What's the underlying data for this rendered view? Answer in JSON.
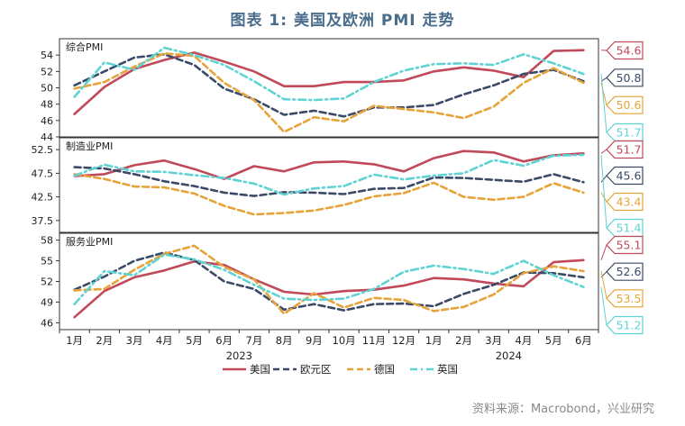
{
  "figure_title": "图表 1:    美国及欧洲 PMI 走势",
  "source_note": "资料来源：Macrobond，兴业研究",
  "colors": {
    "us": "#c0495a",
    "eurozone": "#3b4a66",
    "germany": "#e6a33a",
    "uk": "#5fd3d3"
  },
  "x_labels": [
    "1月",
    "2月",
    "3月",
    "4月",
    "5月",
    "6月",
    "7月",
    "8月",
    "9月",
    "10月",
    "11月",
    "12月",
    "1月",
    "2月",
    "3月",
    "4月",
    "5月",
    "6月"
  ],
  "year_labels": [
    "2023",
    "2024"
  ],
  "legend": [
    {
      "key": "us",
      "label": "美国",
      "style": "solid"
    },
    {
      "key": "eurozone",
      "label": "欧元区",
      "style": "dash"
    },
    {
      "key": "germany",
      "label": "德国",
      "style": "dash"
    },
    {
      "key": "uk",
      "label": "英国",
      "style": "dashdot"
    }
  ],
  "chart_data": [
    {
      "type": "line",
      "title": "综合PMI",
      "ylim": [
        44,
        56
      ],
      "yticks": [
        44,
        46,
        48,
        50,
        52,
        54
      ],
      "series": [
        {
          "name": "美国",
          "key": "us",
          "values": [
            46.8,
            50.1,
            52.3,
            53.4,
            54.3,
            53.2,
            52.0,
            50.2,
            50.2,
            50.7,
            50.7,
            50.9,
            52.0,
            52.5,
            52.1,
            51.3,
            54.5,
            54.6
          ],
          "end_label": "54.6"
        },
        {
          "name": "欧元区",
          "key": "eurozone",
          "values": [
            50.3,
            52.0,
            53.7,
            54.1,
            52.8,
            49.9,
            48.6,
            46.7,
            47.2,
            46.5,
            47.6,
            47.6,
            47.9,
            49.2,
            50.3,
            51.7,
            52.2,
            50.8
          ],
          "end_label": "50.8"
        },
        {
          "name": "德国",
          "key": "germany",
          "values": [
            49.9,
            50.7,
            52.6,
            54.2,
            53.9,
            50.6,
            48.5,
            44.6,
            46.4,
            45.9,
            47.8,
            47.4,
            47.0,
            46.3,
            47.7,
            50.6,
            52.4,
            50.6
          ],
          "end_label": "50.6"
        },
        {
          "name": "英国",
          "key": "uk",
          "values": [
            48.9,
            53.1,
            52.2,
            54.9,
            54.0,
            52.8,
            50.8,
            48.6,
            48.5,
            48.7,
            50.7,
            52.1,
            52.9,
            53.0,
            52.8,
            54.1,
            53.0,
            51.7
          ],
          "end_label": "51.7"
        }
      ]
    },
    {
      "type": "line",
      "title": "制造业PMI",
      "ylim": [
        35,
        55
      ],
      "yticks": [
        37.5,
        42.5,
        47.5,
        52.5
      ],
      "series": [
        {
          "name": "美国",
          "key": "us",
          "values": [
            46.9,
            47.3,
            49.2,
            50.2,
            48.4,
            46.3,
            49.0,
            47.9,
            49.8,
            50.0,
            49.4,
            47.9,
            50.7,
            52.2,
            51.9,
            50.0,
            51.3,
            51.7
          ],
          "end_label": "51.7"
        },
        {
          "name": "欧元区",
          "key": "eurozone",
          "values": [
            48.8,
            48.5,
            47.3,
            45.8,
            44.8,
            43.4,
            42.7,
            43.5,
            43.4,
            43.1,
            44.2,
            44.4,
            46.6,
            46.5,
            46.1,
            45.7,
            47.3,
            45.6
          ],
          "end_label": "45.6"
        },
        {
          "name": "德国",
          "key": "germany",
          "values": [
            47.3,
            46.3,
            44.7,
            44.5,
            43.2,
            40.6,
            38.8,
            39.1,
            39.6,
            40.8,
            42.6,
            43.3,
            45.5,
            42.5,
            41.9,
            42.5,
            45.4,
            43.4
          ],
          "end_label": "43.4"
        },
        {
          "name": "英国",
          "key": "uk",
          "values": [
            47.0,
            49.3,
            47.9,
            47.8,
            47.1,
            46.5,
            45.3,
            43.0,
            44.3,
            44.8,
            47.2,
            46.2,
            47.0,
            47.5,
            50.3,
            49.1,
            51.2,
            51.4
          ],
          "end_label": "51.4"
        }
      ]
    },
    {
      "type": "line",
      "title": "服务业PMI",
      "ylim": [
        45,
        59
      ],
      "yticks": [
        46,
        49,
        52,
        55,
        58
      ],
      "series": [
        {
          "name": "美国",
          "key": "us",
          "values": [
            46.8,
            50.6,
            52.6,
            53.6,
            54.9,
            54.4,
            52.3,
            50.5,
            50.1,
            50.6,
            50.8,
            51.4,
            52.5,
            52.3,
            51.7,
            51.3,
            54.8,
            55.1
          ],
          "end_label": "55.1"
        },
        {
          "name": "欧元区",
          "key": "eurozone",
          "values": [
            50.8,
            52.7,
            55.0,
            56.2,
            55.1,
            52.0,
            50.9,
            47.9,
            48.7,
            47.8,
            48.7,
            48.8,
            48.4,
            50.2,
            51.5,
            53.3,
            53.2,
            52.6
          ],
          "end_label": "52.6"
        },
        {
          "name": "德国",
          "key": "germany",
          "values": [
            50.7,
            50.9,
            53.7,
            56.0,
            57.2,
            54.1,
            52.3,
            47.3,
            50.3,
            48.2,
            49.6,
            49.3,
            47.7,
            48.3,
            50.1,
            53.2,
            54.2,
            53.5
          ],
          "end_label": "53.5"
        },
        {
          "name": "英国",
          "key": "uk",
          "values": [
            48.7,
            53.5,
            52.9,
            55.9,
            55.2,
            53.7,
            51.5,
            49.5,
            49.3,
            49.5,
            50.9,
            53.4,
            54.3,
            53.8,
            53.1,
            55.0,
            52.9,
            51.2
          ],
          "end_label": "51.2"
        }
      ]
    }
  ]
}
